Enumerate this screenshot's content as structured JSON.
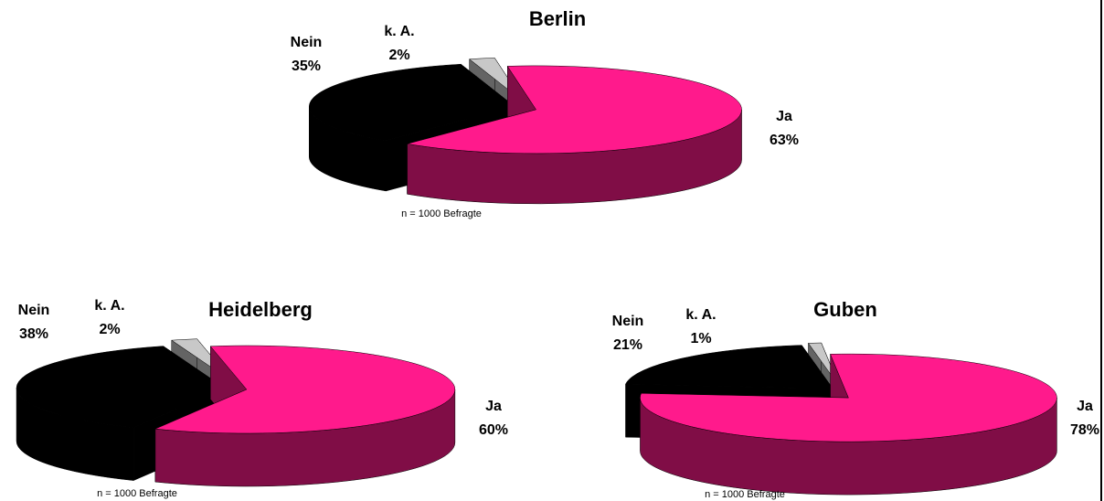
{
  "chart_data": [
    {
      "type": "pie",
      "title": "Berlin",
      "categories": [
        "Ja",
        "Nein",
        "k. A."
      ],
      "values": [
        63,
        35,
        2
      ],
      "value_labels": [
        "63%",
        "35%",
        "2%"
      ],
      "colors": [
        "#ff1a8c",
        "#000000",
        "#c8c8c8"
      ],
      "note": "n = 1000 Befragte"
    },
    {
      "type": "pie",
      "title": "Heidelberg",
      "categories": [
        "Ja",
        "Nein",
        "k. A."
      ],
      "values": [
        60,
        38,
        2
      ],
      "value_labels": [
        "60%",
        "38%",
        "2%"
      ],
      "colors": [
        "#ff1a8c",
        "#000000",
        "#c8c8c8"
      ],
      "note": "n = 1000 Befragte"
    },
    {
      "type": "pie",
      "title": "Guben",
      "categories": [
        "Ja",
        "Nein",
        "k. A."
      ],
      "values": [
        78,
        21,
        1
      ],
      "value_labels": [
        "78%",
        "21%",
        "1%"
      ],
      "colors": [
        "#ff1a8c",
        "#000000",
        "#c8c8c8"
      ],
      "note": "n = 1000 Befragte"
    }
  ]
}
